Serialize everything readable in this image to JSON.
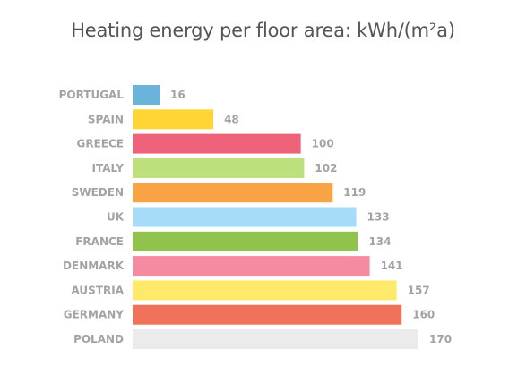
{
  "chart_data": {
    "type": "bar",
    "orientation": "horizontal",
    "title": "Heating energy per floor area: kWh/(m²a)",
    "categories": [
      "PORTUGAL",
      "SPAIN",
      "GREECE",
      "ITALY",
      "SWEDEN",
      "UK",
      "FRANCE",
      "DENMARK",
      "AUSTRIA",
      "GERMANY",
      "POLAND"
    ],
    "values": [
      16,
      48,
      100,
      102,
      119,
      133,
      134,
      141,
      157,
      160,
      170
    ],
    "value_labels": [
      "16",
      "48",
      "100",
      "102",
      "119",
      "133",
      "134",
      "141",
      "157",
      "160",
      "170"
    ],
    "colors": [
      "#6ab4dc",
      "#fed535",
      "#ee6379",
      "#bde07c",
      "#f8a344",
      "#a6dcf8",
      "#8fc34c",
      "#f48ba0",
      "#fee96a",
      "#f0725a",
      "#ebebeb"
    ],
    "xlim": [
      0,
      170
    ],
    "xlabel": "",
    "ylabel": "",
    "grid": false,
    "legend": "none"
  }
}
